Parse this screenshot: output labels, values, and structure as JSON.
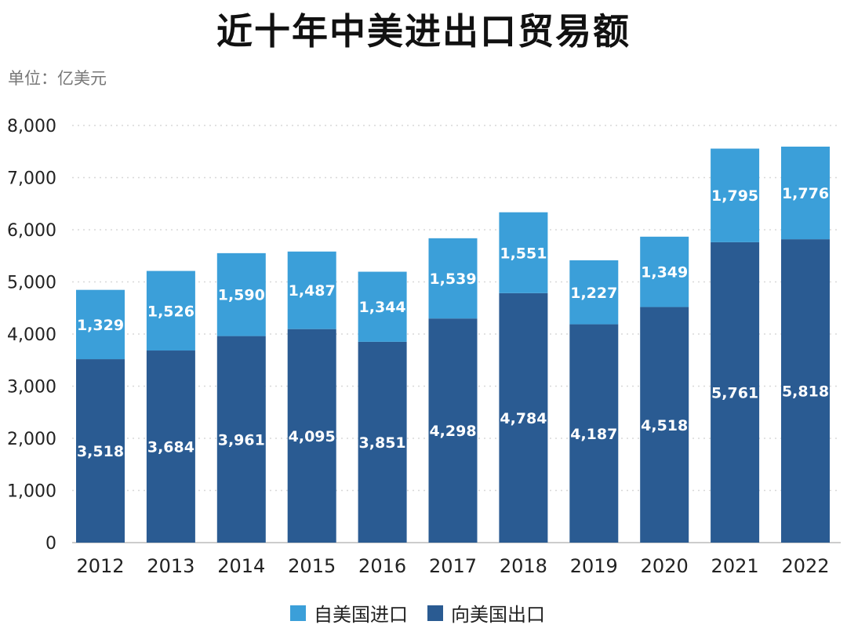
{
  "chart_data": {
    "type": "bar",
    "stacked": true,
    "title": "近十年中美进出口贸易额",
    "unit": "单位：亿美元",
    "categories": [
      "2012",
      "2013",
      "2014",
      "2015",
      "2016",
      "2017",
      "2018",
      "2019",
      "2020",
      "2021",
      "2022"
    ],
    "series": [
      {
        "name": "向美国出口",
        "color": "#2a5b92",
        "values": [
          3518,
          3684,
          3961,
          4095,
          3851,
          4298,
          4784,
          4187,
          4518,
          5761,
          5818
        ]
      },
      {
        "name": "自美国进口",
        "color": "#3b9fd9",
        "values": [
          1329,
          1526,
          1590,
          1487,
          1344,
          1539,
          1551,
          1227,
          1349,
          1795,
          1776
        ]
      }
    ],
    "ylim": [
      0,
      8000
    ],
    "yticks": [
      "0",
      "1,000",
      "2,000",
      "3,000",
      "4,000",
      "5,000",
      "6,000",
      "7,000",
      "8,000"
    ],
    "grid": true,
    "legend_position": "bottom"
  }
}
